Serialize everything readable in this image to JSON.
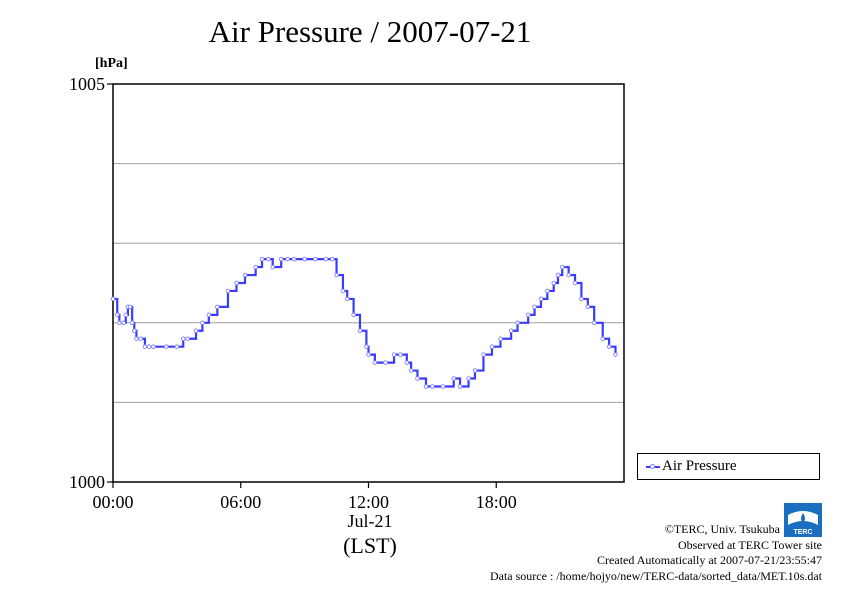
{
  "chart_data": {
    "type": "line",
    "title": "Air Pressure / 2007-07-21",
    "ylabel": "[hPa]",
    "ylim": [
      1000,
      1005
    ],
    "y_ticks": [
      {
        "value": 1000,
        "label": "1000"
      },
      {
        "value": 1005,
        "label": "1005"
      }
    ],
    "y_gridlines": [
      1001,
      1002,
      1003,
      1004
    ],
    "xlim": [
      0,
      24
    ],
    "x_ticks": [
      {
        "value": 0,
        "label": "00:00"
      },
      {
        "value": 6,
        "label": "06:00"
      },
      {
        "value": 12,
        "label": "12:00"
      },
      {
        "value": 18,
        "label": "18:00"
      }
    ],
    "x_date_label": "Jul-21",
    "x_timezone_label": "(LST)",
    "grid": "horizontal",
    "legend_position": "right",
    "series": [
      {
        "name": "Air Pressure",
        "color": "#3b3bff",
        "x": [
          0.0,
          0.2,
          0.3,
          0.5,
          0.6,
          0.7,
          0.8,
          0.9,
          1.0,
          1.1,
          1.3,
          1.5,
          1.7,
          1.9,
          2.5,
          3.0,
          3.3,
          3.5,
          3.9,
          4.2,
          4.5,
          4.9,
          5.4,
          5.8,
          6.2,
          6.7,
          7.0,
          7.3,
          7.5,
          7.9,
          8.2,
          8.5,
          9.0,
          9.5,
          10.0,
          10.3,
          10.5,
          10.8,
          11.0,
          11.3,
          11.6,
          11.9,
          12.0,
          12.3,
          12.8,
          13.2,
          13.5,
          13.8,
          14.0,
          14.3,
          14.7,
          15.0,
          15.5,
          16.0,
          16.3,
          16.7,
          17.0,
          17.4,
          17.8,
          18.2,
          18.7,
          19.0,
          19.5,
          19.8,
          20.1,
          20.4,
          20.7,
          20.9,
          21.1,
          21.4,
          21.7,
          22.0,
          22.3,
          22.6,
          23.0,
          23.3,
          23.6
        ],
        "y": [
          1002.3,
          1002.1,
          1002.0,
          1002.0,
          1002.1,
          1002.2,
          1002.2,
          1002.0,
          1001.9,
          1001.8,
          1001.8,
          1001.7,
          1001.7,
          1001.7,
          1001.7,
          1001.7,
          1001.8,
          1001.8,
          1001.9,
          1002.0,
          1002.1,
          1002.2,
          1002.4,
          1002.5,
          1002.6,
          1002.7,
          1002.8,
          1002.8,
          1002.7,
          1002.8,
          1002.8,
          1002.8,
          1002.8,
          1002.8,
          1002.8,
          1002.8,
          1002.6,
          1002.4,
          1002.3,
          1002.1,
          1001.9,
          1001.7,
          1001.6,
          1001.5,
          1001.5,
          1001.6,
          1001.6,
          1001.5,
          1001.4,
          1001.3,
          1001.2,
          1001.2,
          1001.2,
          1001.3,
          1001.2,
          1001.3,
          1001.4,
          1001.6,
          1001.7,
          1001.8,
          1001.9,
          1002.0,
          1002.1,
          1002.2,
          1002.3,
          1002.4,
          1002.5,
          1002.6,
          1002.7,
          1002.6,
          1002.5,
          1002.3,
          1002.2,
          1002.0,
          1001.8,
          1001.7,
          1001.6
        ]
      }
    ]
  },
  "footer": {
    "copyright": "©TERC, Univ. Tsukuba",
    "site": "Observed at TERC Tower site",
    "created": "Created Automatically at 2007-07-21/23:55:47",
    "source": "Data source : /home/hojyo/new/TERC-data/sorted_data/MET.10s.dat"
  },
  "logo_text": "TERC"
}
